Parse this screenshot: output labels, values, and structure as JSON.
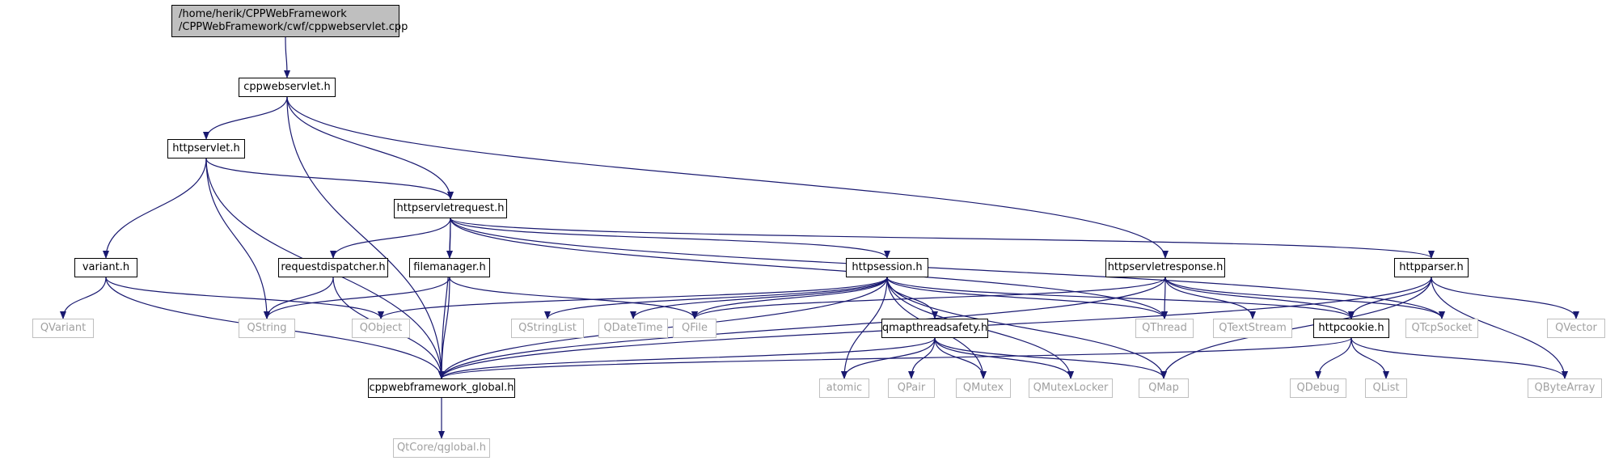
{
  "graph": {
    "edge_color": "#191970",
    "root": {
      "line1": "/home/herik/CPPWebFramework",
      "line2": "/CPPWebFramework/cwf/cppwebservlet.cpp"
    },
    "nodes": {
      "cppwebservlet_h": "cppwebservlet.h",
      "httpservlet_h": "httpservlet.h",
      "httpservletrequest_h": "httpservletrequest.h",
      "variant_h": "variant.h",
      "requestdispatcher_h": "requestdispatcher.h",
      "filemanager_h": "filemanager.h",
      "httpsession_h": "httpsession.h",
      "httpservletresponse_h": "httpservletresponse.h",
      "httpparser_h": "httpparser.h",
      "qmapthreadsafety_h": "qmapthreadsafety.h",
      "httpcookie_h": "httpcookie.h",
      "cppwebframework_global_h": "cppwebframework_global.h",
      "qvariant": "QVariant",
      "qstring": "QString",
      "qobject": "QObject",
      "qstringlist": "QStringList",
      "qdatetime": "QDateTime",
      "qfile": "QFile",
      "qthread": "QThread",
      "qtextstream": "QTextStream",
      "qtcpsocket": "QTcpSocket",
      "qvector": "QVector",
      "atomic": "atomic",
      "qpair": "QPair",
      "qmutex": "QMutex",
      "qmutexlocker": "QMutexLocker",
      "qmap": "QMap",
      "qdebug": "QDebug",
      "qlist": "QList",
      "qbytearray": "QByteArray",
      "qtcore_qglobal_h": "QtCore/qglobal.h"
    },
    "edges": [
      [
        "root",
        "cppwebservlet_h"
      ],
      [
        "cppwebservlet_h",
        "httpservlet_h"
      ],
      [
        "cppwebservlet_h",
        "httpservletrequest_h"
      ],
      [
        "cppwebservlet_h",
        "httpservletresponse_h"
      ],
      [
        "cppwebservlet_h",
        "cppwebframework_global_h"
      ],
      [
        "httpservlet_h",
        "httpservletrequest_h"
      ],
      [
        "httpservlet_h",
        "variant_h"
      ],
      [
        "httpservlet_h",
        "qstring"
      ],
      [
        "httpservlet_h",
        "cppwebframework_global_h"
      ],
      [
        "httpservletrequest_h",
        "requestdispatcher_h"
      ],
      [
        "httpservletrequest_h",
        "filemanager_h"
      ],
      [
        "httpservletrequest_h",
        "httpsession_h"
      ],
      [
        "httpservletrequest_h",
        "httpparser_h"
      ],
      [
        "httpservletrequest_h",
        "qthread"
      ],
      [
        "httpservletrequest_h",
        "qtcpsocket"
      ],
      [
        "httpservletrequest_h",
        "cppwebframework_global_h"
      ],
      [
        "variant_h",
        "qvariant"
      ],
      [
        "variant_h",
        "qobject"
      ],
      [
        "variant_h",
        "cppwebframework_global_h"
      ],
      [
        "requestdispatcher_h",
        "qstring"
      ],
      [
        "requestdispatcher_h",
        "cppwebframework_global_h"
      ],
      [
        "filemanager_h",
        "qstring"
      ],
      [
        "filemanager_h",
        "qfile"
      ],
      [
        "filemanager_h",
        "cppwebframework_global_h"
      ],
      [
        "httpsession_h",
        "qobject"
      ],
      [
        "httpsession_h",
        "qstringlist"
      ],
      [
        "httpsession_h",
        "qdatetime"
      ],
      [
        "httpsession_h",
        "qfile"
      ],
      [
        "httpsession_h",
        "qthread"
      ],
      [
        "httpsession_h",
        "httpcookie_h"
      ],
      [
        "httpsession_h",
        "qmapthreadsafety_h"
      ],
      [
        "httpsession_h",
        "atomic"
      ],
      [
        "httpsession_h",
        "qmutex"
      ],
      [
        "httpsession_h",
        "qmutexlocker"
      ],
      [
        "httpsession_h",
        "qmap"
      ],
      [
        "httpsession_h",
        "cppwebframework_global_h"
      ],
      [
        "httpservletresponse_h",
        "qfile"
      ],
      [
        "httpservletresponse_h",
        "qthread"
      ],
      [
        "httpservletresponse_h",
        "qtextstream"
      ],
      [
        "httpservletresponse_h",
        "qtcpsocket"
      ],
      [
        "httpservletresponse_h",
        "httpcookie_h"
      ],
      [
        "httpservletresponse_h",
        "cppwebframework_global_h"
      ],
      [
        "httpparser_h",
        "httpcookie_h"
      ],
      [
        "httpparser_h",
        "qvector"
      ],
      [
        "httpparser_h",
        "qbytearray"
      ],
      [
        "httpparser_h",
        "qmap"
      ],
      [
        "httpparser_h",
        "cppwebframework_global_h"
      ],
      [
        "qmapthreadsafety_h",
        "atomic"
      ],
      [
        "qmapthreadsafety_h",
        "qpair"
      ],
      [
        "qmapthreadsafety_h",
        "qmutex"
      ],
      [
        "qmapthreadsafety_h",
        "qmutexlocker"
      ],
      [
        "qmapthreadsafety_h",
        "qmap"
      ],
      [
        "qmapthreadsafety_h",
        "cppwebframework_global_h"
      ],
      [
        "httpcookie_h",
        "qdebug"
      ],
      [
        "httpcookie_h",
        "qlist"
      ],
      [
        "httpcookie_h",
        "qbytearray"
      ],
      [
        "httpcookie_h",
        "cppwebframework_global_h"
      ],
      [
        "cppwebframework_global_h",
        "qtcore_qglobal_h"
      ]
    ]
  }
}
